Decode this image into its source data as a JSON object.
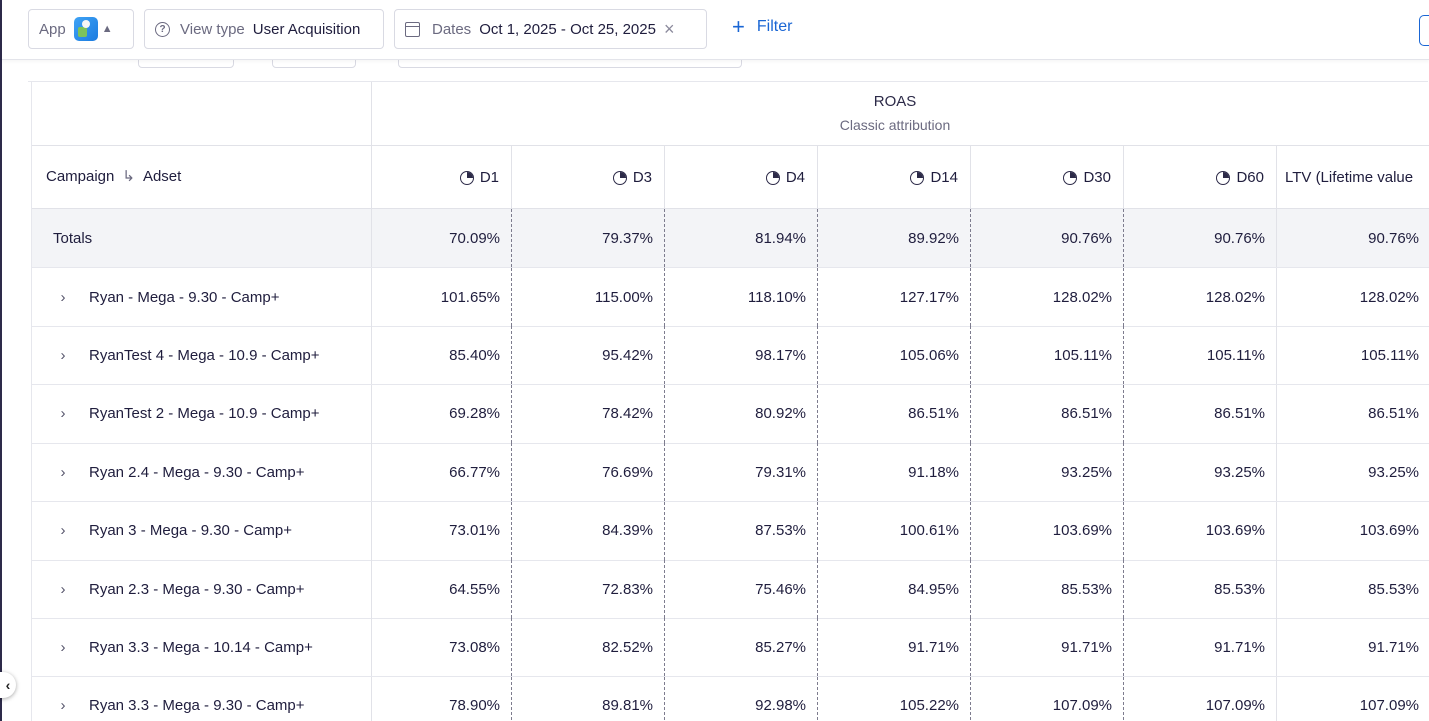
{
  "topbar": {
    "app_label": "App",
    "app_platform_icon": "android-icon",
    "view_type_label": "View type",
    "view_type_value": "User Acquisition",
    "dates_label": "Dates",
    "dates_value": "Oct 1, 2025 - Oct 25, 2025",
    "filter_label": "Filter"
  },
  "table": {
    "group_title": "ROAS",
    "group_subtitle": "Classic attribution",
    "campaign_header": "Campaign",
    "adset_header": "Adset",
    "columns": [
      "D1",
      "D3",
      "D4",
      "D14",
      "D30",
      "D60"
    ],
    "ltv_header": "LTV (Lifetime value",
    "totals": {
      "label": "Totals",
      "values": [
        "70.09%",
        "79.37%",
        "81.94%",
        "89.92%",
        "90.76%",
        "90.76%",
        "90.76%"
      ]
    },
    "rows": [
      {
        "name": "Ryan - Mega - 9.30 - Camp+",
        "values": [
          "101.65%",
          "115.00%",
          "118.10%",
          "127.17%",
          "128.02%",
          "128.02%",
          "128.02%"
        ]
      },
      {
        "name": "RyanTest 4 - Mega - 10.9 - Camp+",
        "values": [
          "85.40%",
          "95.42%",
          "98.17%",
          "105.06%",
          "105.11%",
          "105.11%",
          "105.11%"
        ]
      },
      {
        "name": "RyanTest 2 - Mega - 10.9 - Camp+",
        "values": [
          "69.28%",
          "78.42%",
          "80.92%",
          "86.51%",
          "86.51%",
          "86.51%",
          "86.51%"
        ]
      },
      {
        "name": "Ryan 2.4 - Mega - 9.30 - Camp+",
        "values": [
          "66.77%",
          "76.69%",
          "79.31%",
          "91.18%",
          "93.25%",
          "93.25%",
          "93.25%"
        ]
      },
      {
        "name": "Ryan 3 - Mega - 9.30 - Camp+",
        "values": [
          "73.01%",
          "84.39%",
          "87.53%",
          "100.61%",
          "103.69%",
          "103.69%",
          "103.69%"
        ]
      },
      {
        "name": "Ryan 2.3 - Mega - 9.30 - Camp+",
        "values": [
          "64.55%",
          "72.83%",
          "75.46%",
          "84.95%",
          "85.53%",
          "85.53%",
          "85.53%"
        ]
      },
      {
        "name": "Ryan 3.3 - Mega - 10.14 - Camp+",
        "values": [
          "73.08%",
          "82.52%",
          "85.27%",
          "91.71%",
          "91.71%",
          "91.71%",
          "91.71%"
        ]
      },
      {
        "name": "Ryan 3.3 - Mega - 9.30 - Camp+",
        "values": [
          "78.90%",
          "89.81%",
          "92.98%",
          "105.22%",
          "107.09%",
          "107.09%",
          "107.09%"
        ]
      }
    ]
  }
}
